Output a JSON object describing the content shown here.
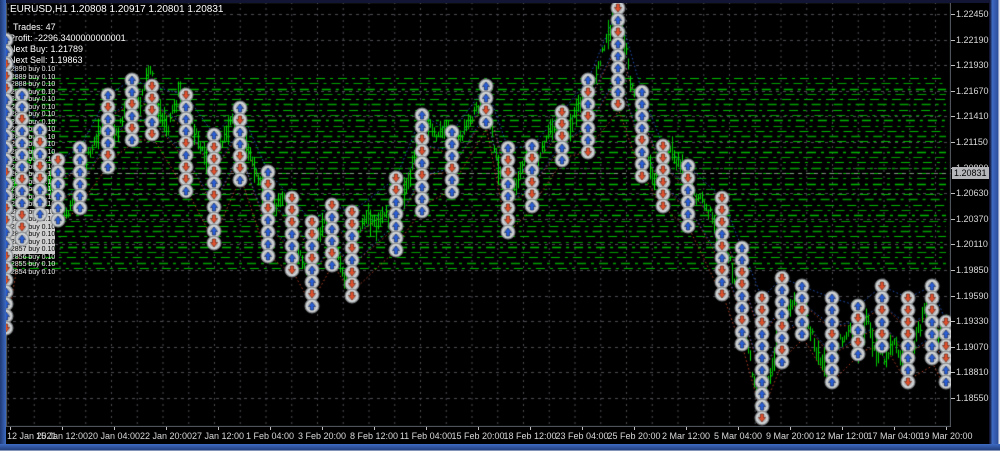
{
  "window": {
    "title": "EURUSD,H1  1.20808 1.20917 1.20801 1.20831"
  },
  "info_overlay": {
    "trades": "Trades: 47",
    "profit": "Profit: -2296.3400000000001",
    "next_buy": "Next Buy: 1.21789",
    "next_sell": "Next Sell: 1.19863"
  },
  "orders": [
    {
      "text": "#2890 buy 0.10",
      "hl": false
    },
    {
      "text": "#2889 buy 0.10",
      "hl": false
    },
    {
      "text": "#2888 buy 0.10",
      "hl": false
    },
    {
      "text": "#2887 buy 0.10",
      "hl": false
    },
    {
      "text": "#2886 buy 0.10",
      "hl": false
    },
    {
      "text": "#2885 buy 0.10",
      "hl": false
    },
    {
      "text": "#2884 buy 0.10",
      "hl": false
    },
    {
      "text": "#2883 buy 0.10",
      "hl": false
    },
    {
      "text": "#2882 buy 0.10",
      "hl": false
    },
    {
      "text": "#2881 buy 0.10",
      "hl": false
    },
    {
      "text": "#2880 buy 0.10",
      "hl": false
    },
    {
      "text": "#2879 buy 0.10",
      "hl": false
    },
    {
      "text": "#2878 buy 0.10",
      "hl": false
    },
    {
      "text": "#2877 buy 0.10",
      "hl": false
    },
    {
      "text": "#2867 buy 0.10",
      "hl": false
    },
    {
      "text": "#2866 buy 0.10",
      "hl": false
    },
    {
      "text": "#2865 buy 0.10",
      "hl": false
    },
    {
      "text": "#2864 buy 0.10",
      "hl": false
    },
    {
      "text": "#2863 buy 0.10",
      "hl": false
    },
    {
      "text": "#2862 buy 0.10",
      "hl": true
    },
    {
      "text": "#2861 buy 0.10",
      "hl": true
    },
    {
      "text": "#2860 buy 0.10",
      "hl": true
    },
    {
      "text": "#2859 buy 0.10",
      "hl": true
    },
    {
      "text": "#2858 buy 0.10",
      "hl": true
    },
    {
      "text": "#2857 buy 0.10",
      "hl": true
    },
    {
      "text": "#2856 buy 0.10",
      "hl": false
    },
    {
      "text": "#2855 buy 0.10",
      "hl": false
    },
    {
      "text": "#2854 buy 0.10",
      "hl": false
    }
  ],
  "chart_data": {
    "type": "line",
    "symbol": "EURUSD",
    "period": "H1",
    "ohlc_current": {
      "open": 1.20808,
      "high": 1.20917,
      "low": 1.20801,
      "close": 1.20831
    },
    "y_axis": {
      "labels": [
        "1.22450",
        "1.22190",
        "1.21930",
        "1.21670",
        "1.21410",
        "1.21150",
        "1.20890",
        "1.20630",
        "1.20370",
        "1.20110",
        "1.19850",
        "1.19590",
        "1.19330",
        "1.19070",
        "1.18810",
        "1.18550"
      ],
      "max": 1.2245,
      "min": 1.1855,
      "step": 0.0026,
      "current": 1.20831,
      "current_label": "1.20831"
    },
    "x_axis": {
      "labels": [
        "12 Jan 2021",
        "15 Jan 12:00",
        "20 Jan 04:00",
        "22 Jan 20:00",
        "27 Jan 12:00",
        "1 Feb 04:00",
        "3 Feb 20:00",
        "8 Feb 12:00",
        "11 Feb 04:00",
        "15 Feb 20:00",
        "18 Feb 12:00",
        "23 Feb 04:00",
        "25 Feb 20:00",
        "2 Mar 12:00",
        "5 Mar 04:00",
        "9 Mar 20:00",
        "12 Mar 12:00",
        "17 Mar 04:00",
        "19 Mar 20:00"
      ]
    },
    "grid_band": {
      "top_price": 1.218,
      "bottom_price": 1.1987,
      "lines": 37
    },
    "note": "price path and trade marker columns estimated from pixels",
    "path": [
      [
        8,
        1.20713
      ],
      [
        20,
        1.20815
      ],
      [
        35,
        1.21069
      ],
      [
        50,
        1.20713
      ],
      [
        65,
        1.20409
      ],
      [
        75,
        1.20561
      ],
      [
        90,
        1.21069
      ],
      [
        105,
        1.21373
      ],
      [
        115,
        1.2117
      ],
      [
        130,
        1.21678
      ],
      [
        140,
        1.21577
      ],
      [
        150,
        1.21902
      ],
      [
        158,
        1.21475
      ],
      [
        168,
        1.21323
      ],
      [
        178,
        1.21627
      ],
      [
        188,
        1.21475
      ],
      [
        200,
        1.21069
      ],
      [
        210,
        1.20916
      ],
      [
        222,
        1.2117
      ],
      [
        232,
        1.21373
      ],
      [
        242,
        1.21221
      ],
      [
        252,
        1.20916
      ],
      [
        262,
        1.20663
      ],
      [
        272,
        1.20459
      ],
      [
        282,
        1.20612
      ],
      [
        295,
        1.20155
      ],
      [
        305,
        1.1985
      ],
      [
        315,
        1.20155
      ],
      [
        325,
        1.20307
      ],
      [
        335,
        1.20053
      ],
      [
        345,
        1.19749
      ],
      [
        355,
        1.20155
      ],
      [
        365,
        1.20409
      ],
      [
        375,
        1.20307
      ],
      [
        385,
        1.20459
      ],
      [
        395,
        1.20256
      ],
      [
        405,
        1.20612
      ],
      [
        415,
        1.21069
      ],
      [
        425,
        1.21424
      ],
      [
        435,
        1.21221
      ],
      [
        445,
        1.21323
      ],
      [
        455,
        1.2112
      ],
      [
        465,
        1.21272
      ],
      [
        475,
        1.21475
      ],
      [
        485,
        1.21627
      ],
      [
        495,
        1.21069
      ],
      [
        505,
        1.2051
      ],
      [
        515,
        1.20713
      ],
      [
        525,
        1.20967
      ],
      [
        535,
        1.20815
      ],
      [
        545,
        1.2117
      ],
      [
        555,
        1.21323
      ],
      [
        565,
        1.2117
      ],
      [
        575,
        1.21475
      ],
      [
        585,
        1.21627
      ],
      [
        595,
        1.2178
      ],
      [
        605,
        1.22135
      ],
      [
        615,
        1.22491
      ],
      [
        622,
        1.22338
      ],
      [
        630,
        1.2178
      ],
      [
        640,
        1.21373
      ],
      [
        650,
        1.20866
      ],
      [
        660,
        1.20713
      ],
      [
        670,
        1.21069
      ],
      [
        680,
        1.20916
      ],
      [
        690,
        1.20713
      ],
      [
        700,
        1.20561
      ],
      [
        710,
        1.20409
      ],
      [
        720,
        1.20104
      ],
      [
        730,
        1.19952
      ],
      [
        740,
        1.19545
      ],
      [
        750,
        1.18936
      ],
      [
        760,
        1.18479
      ],
      [
        770,
        1.18835
      ],
      [
        780,
        1.19241
      ],
      [
        790,
        1.19444
      ],
      [
        800,
        1.19596
      ],
      [
        810,
        1.19241
      ],
      [
        820,
        1.18936
      ],
      [
        830,
        1.18784
      ],
      [
        840,
        1.19139
      ],
      [
        850,
        1.19241
      ],
      [
        858,
        1.19088
      ],
      [
        866,
        1.19342
      ],
      [
        875,
        1.19088
      ],
      [
        885,
        1.18936
      ],
      [
        895,
        1.19139
      ],
      [
        905,
        1.18834
      ],
      [
        915,
        1.19139
      ],
      [
        925,
        1.19444
      ],
      [
        935,
        1.19139
      ],
      [
        945,
        1.19342
      ]
    ],
    "trade_marker_columns_px": [
      [
        6,
        40,
        330
      ],
      [
        22,
        95,
        235
      ],
      [
        40,
        130,
        215
      ],
      [
        58,
        160,
        222
      ],
      [
        80,
        148,
        205
      ],
      [
        108,
        95,
        162
      ],
      [
        132,
        80,
        140
      ],
      [
        152,
        86,
        136
      ],
      [
        186,
        95,
        188
      ],
      [
        214,
        135,
        238
      ],
      [
        240,
        108,
        175
      ],
      [
        268,
        172,
        255
      ],
      [
        292,
        198,
        270
      ],
      [
        312,
        222,
        302
      ],
      [
        332,
        205,
        262
      ],
      [
        352,
        212,
        292
      ],
      [
        396,
        178,
        246
      ],
      [
        422,
        115,
        206
      ],
      [
        452,
        132,
        186
      ],
      [
        486,
        86,
        126
      ],
      [
        508,
        148,
        232
      ],
      [
        532,
        146,
        206
      ],
      [
        562,
        112,
        158
      ],
      [
        588,
        80,
        148
      ],
      [
        618,
        8,
        108
      ],
      [
        642,
        92,
        172
      ],
      [
        663,
        146,
        206
      ],
      [
        688,
        166,
        226
      ],
      [
        722,
        198,
        292
      ],
      [
        742,
        248,
        345
      ],
      [
        762,
        298,
        412
      ],
      [
        782,
        278,
        360
      ],
      [
        802,
        286,
        336
      ],
      [
        832,
        298,
        382
      ],
      [
        858,
        306,
        352
      ],
      [
        882,
        286,
        342
      ],
      [
        908,
        298,
        380
      ],
      [
        932,
        286,
        362
      ],
      [
        946,
        322,
        386
      ]
    ],
    "colors": {
      "bull": "#00e400",
      "bull_dim": "#00c400",
      "grid": "#4c4c55",
      "band": "#00a800",
      "marker_fill": "#b9bcbe",
      "marker_edge": "#7d8184",
      "buy_arrow": "#2a5fd7",
      "sell_arrow": "#df512e",
      "axis_text": "#d9d9d9",
      "frame": "#5a5e66"
    }
  }
}
